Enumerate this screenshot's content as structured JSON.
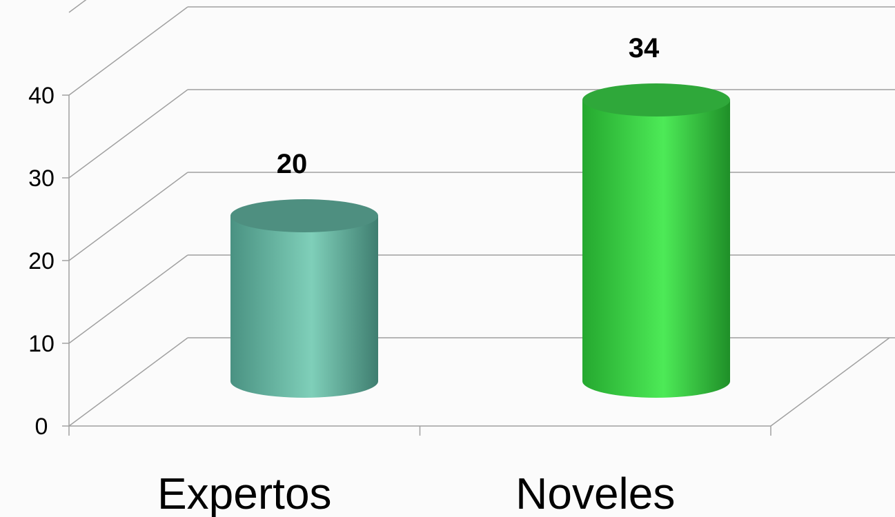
{
  "chart_data": {
    "type": "bar",
    "style": "3d-cylinder",
    "categories": [
      "Expertos",
      "Noveles"
    ],
    "values": [
      20,
      34
    ],
    "data_labels": [
      "20",
      "34"
    ],
    "ylim": [
      0,
      40
    ],
    "yticks": [
      "0",
      "10",
      "20",
      "30",
      "40"
    ],
    "grid": true,
    "legend": "none",
    "colors": {
      "Expertos": "#6dbfa9",
      "Noveles": "#3fe04a"
    }
  }
}
